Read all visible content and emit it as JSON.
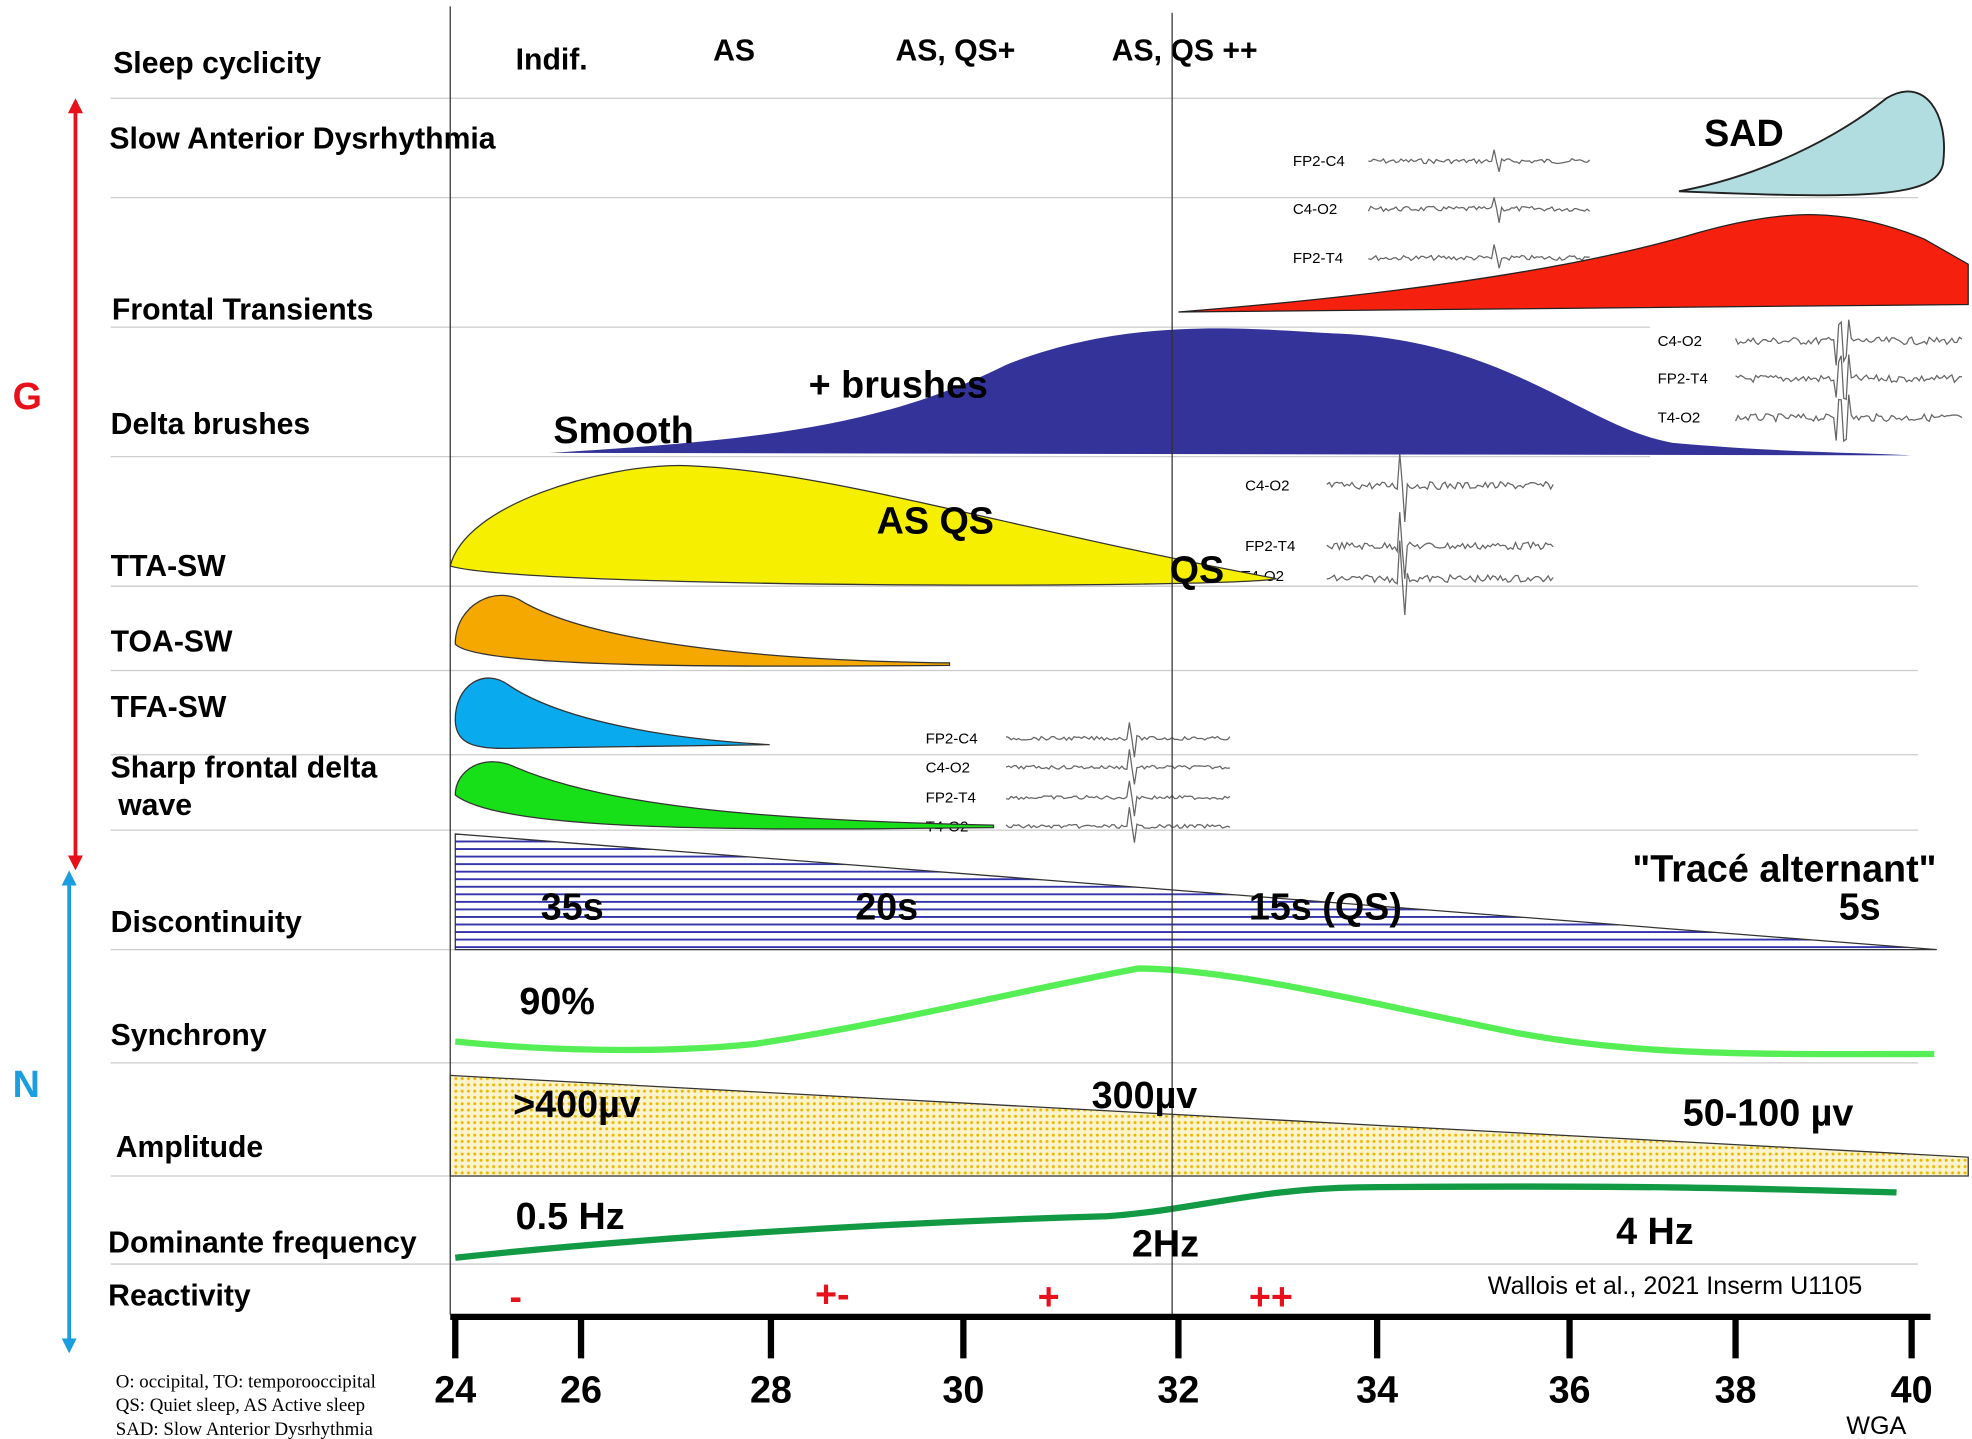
{
  "axes_labels": {
    "g": "G",
    "n": "N"
  },
  "row_labels": [
    "Sleep cyclicity",
    "Slow Anterior Dysrhythmia",
    "Frontal Transients",
    "Delta brushes",
    "TTA-SW",
    "TOA-SW",
    "TFA-SW",
    "Sharp frontal delta",
    "wave",
    "Discontinuity",
    "Synchrony",
    "Amplitude",
    "Dominante frequency",
    "Reactivity"
  ],
  "sleep_cyclicity": [
    "Indif.",
    "AS",
    "AS, QS+",
    "AS, QS ++"
  ],
  "annotations": {
    "sad": "SAD",
    "smooth": "Smooth",
    "brushes": "+ brushes",
    "as_qs": "AS QS",
    "qs": "QS",
    "discontinuity": [
      "35s",
      "20s",
      "15s (QS)",
      "\"Tracé alternant\"",
      "5s"
    ],
    "synchrony": [
      "90%"
    ],
    "amplitude": [
      ">400µv",
      "300µv",
      "50-100 µv"
    ],
    "frequency": [
      "0.5 Hz",
      "2Hz",
      "4 Hz"
    ],
    "reactivity": [
      "-",
      "+-",
      "+",
      "++"
    ]
  },
  "eeg_insets": [
    [
      "FP2-C4",
      "C4-O2",
      "FP2-T4"
    ],
    [
      "C4-O2",
      "FP2-T4",
      "T4-O2"
    ],
    [
      "C4-O2",
      "FP2-T4",
      "T4-O2"
    ],
    [
      "FP2-C4",
      "C4-O2",
      "FP2-T4",
      "T4-O2"
    ]
  ],
  "axis": {
    "ticks": [
      "24",
      "26",
      "28",
      "30",
      "32",
      "34",
      "36",
      "38",
      "40"
    ],
    "unit": "WGA"
  },
  "credit": "Wallois et al., 2021 Inserm U1105",
  "footnotes": [
    "O: occipital, TO: temporooccipital",
    "QS: Quiet sleep, AS Active sleep",
    "SAD: Slow Anterior Dysrhythmia"
  ]
}
